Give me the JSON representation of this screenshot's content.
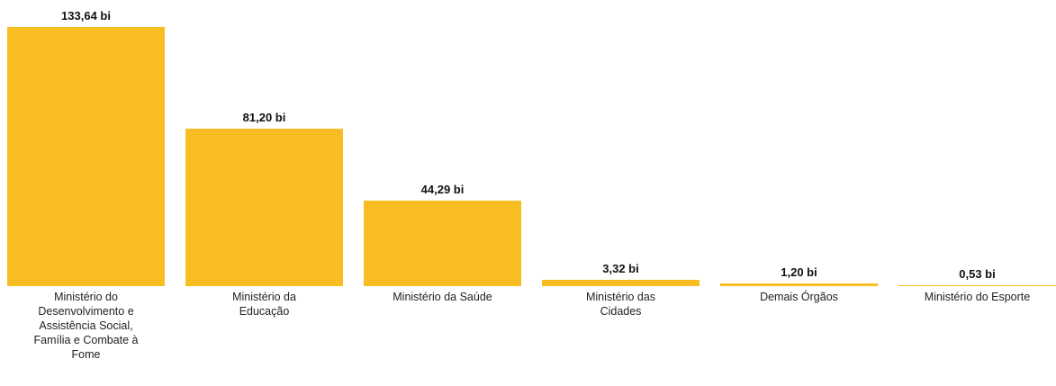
{
  "chart_data": {
    "type": "bar",
    "categories": [
      "Ministério do Desenvolvimento e Assistência Social, Família e Combate à Fome",
      "Ministério da Educação",
      "Ministério da Saúde",
      "Ministério das Cidades",
      "Demais Órgãos",
      "Ministério do Esporte"
    ],
    "values": [
      133.64,
      81.2,
      44.29,
      3.32,
      1.2,
      0.53
    ],
    "value_labels": [
      "133,64 bi",
      "81,20 bi",
      "44,29 bi",
      "3,32 bi",
      "1,20 bi",
      "0,53 bi"
    ],
    "color": "#f8bd23"
  }
}
